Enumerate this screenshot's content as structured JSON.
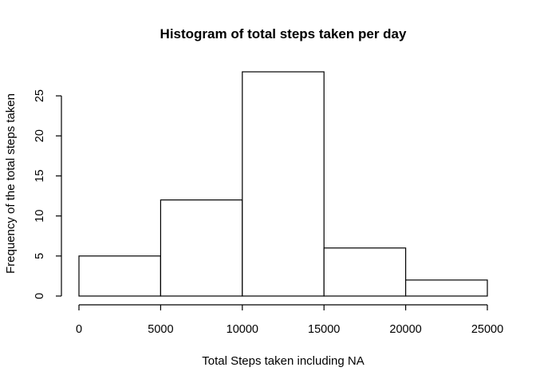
{
  "chart_data": {
    "type": "bar",
    "title": "Histogram of total steps taken per day",
    "xlabel": "Total Steps taken including NA",
    "ylabel": "Frequency of the total steps taken",
    "bins": [
      {
        "from": 0,
        "to": 5000,
        "count": 5
      },
      {
        "from": 5000,
        "to": 10000,
        "count": 12
      },
      {
        "from": 10000,
        "to": 15000,
        "count": 28
      },
      {
        "from": 15000,
        "to": 20000,
        "count": 6
      },
      {
        "from": 20000,
        "to": 25000,
        "count": 2
      }
    ],
    "xlim": [
      0,
      25000
    ],
    "ylim": [
      0,
      28
    ],
    "x_ticks": [
      0,
      5000,
      10000,
      15000,
      20000,
      25000
    ],
    "y_ticks": [
      0,
      5,
      10,
      15,
      20,
      25
    ],
    "grid": false,
    "legend": "none",
    "bar_fill": "#ffffff",
    "bar_stroke": "#000000"
  }
}
